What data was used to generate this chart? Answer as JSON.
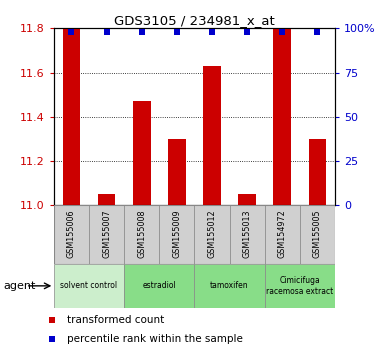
{
  "title": "GDS3105 / 234981_x_at",
  "samples": [
    "GSM155006",
    "GSM155007",
    "GSM155008",
    "GSM155009",
    "GSM155012",
    "GSM155013",
    "GSM154972",
    "GSM155005"
  ],
  "red_values": [
    11.8,
    11.05,
    11.47,
    11.3,
    11.63,
    11.05,
    11.8,
    11.3
  ],
  "ylim_left": [
    11.0,
    11.8
  ],
  "ylim_right": [
    0,
    100
  ],
  "yticks_left": [
    11.0,
    11.2,
    11.4,
    11.6,
    11.8
  ],
  "yticks_right": [
    0,
    25,
    50,
    75,
    100
  ],
  "bar_color": "#cc0000",
  "dot_color": "#0000cc",
  "bar_width": 0.5,
  "tick_color_left": "#cc0000",
  "tick_color_right": "#0000cc",
  "sample_box_color": "#d0d0d0",
  "agent_groups": [
    {
      "label": "solvent control",
      "start": 0,
      "end": 1,
      "color": "#cceecc"
    },
    {
      "label": "estradiol",
      "start": 2,
      "end": 3,
      "color": "#88dd88"
    },
    {
      "label": "tamoxifen",
      "start": 4,
      "end": 5,
      "color": "#88dd88"
    },
    {
      "label": "Cimicifuga\nracemosa extract",
      "start": 6,
      "end": 7,
      "color": "#88dd88"
    }
  ]
}
